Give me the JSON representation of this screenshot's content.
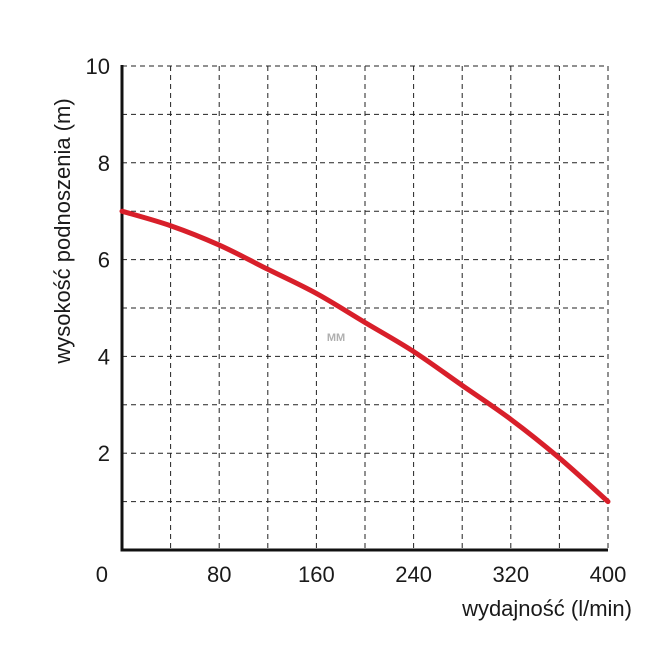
{
  "chart_data": {
    "type": "line",
    "title": "",
    "xlabel": "wydajność (l/min)",
    "ylabel": "wysokość podnoszenia (m)",
    "xlim": [
      0,
      400
    ],
    "ylim": [
      0,
      10
    ],
    "x_ticks": [
      0,
      80,
      160,
      240,
      320,
      400
    ],
    "x_tick_labels": [
      "0",
      "80",
      "160",
      "240",
      "320",
      "400"
    ],
    "y_ticks": [
      2,
      4,
      6,
      8,
      10
    ],
    "y_tick_labels": [
      "2",
      "4",
      "6",
      "8",
      "10"
    ],
    "x_grid_step": 40,
    "y_grid_step": 1,
    "grid": true,
    "series": [
      {
        "color": "#d81f2a",
        "x": [
          0,
          40,
          80,
          120,
          160,
          200,
          240,
          280,
          320,
          360,
          400
        ],
        "y": [
          7.0,
          6.7,
          6.3,
          5.8,
          5.3,
          4.7,
          4.1,
          3.4,
          2.7,
          1.9,
          1.0
        ]
      }
    ]
  },
  "watermark": "MM"
}
